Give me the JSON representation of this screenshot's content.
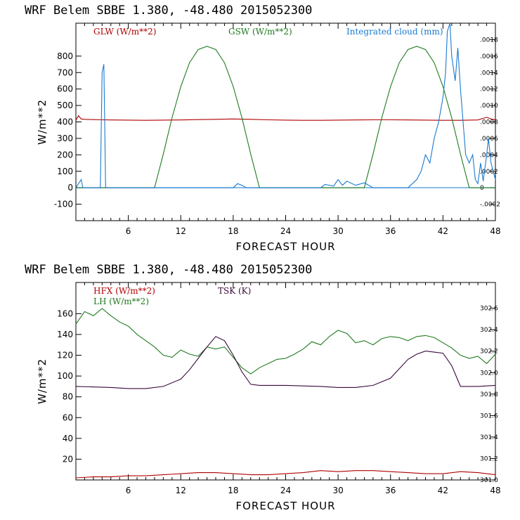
{
  "chart_data": [
    {
      "type": "line",
      "title": "WRF   Belem SBBE      1.380, -48.480  2015052300",
      "xlabel": "FORECAST HOUR",
      "ylabel": "W/m**2",
      "xlim": [
        0,
        48
      ],
      "ylim": [
        -200,
        1000
      ],
      "xticks": [
        "6",
        "12",
        "18",
        "24",
        "30",
        "36",
        "42",
        "48"
      ],
      "yticks": [
        "-100",
        "0",
        "100",
        "200",
        "300",
        "400",
        "500",
        "600",
        "700",
        "800"
      ],
      "y2lim": [
        -0.0004,
        0.002
      ],
      "y2ticks": [
        "-.0002",
        "0",
        ".0002",
        ".0004",
        ".0006",
        ".0008",
        ".0010",
        ".0012",
        ".0014",
        ".0016",
        ".0018"
      ],
      "series": [
        {
          "name": "GLW (W/m**2)",
          "color": "#b00000",
          "axis": "left",
          "x": [
            0,
            0.3,
            0.6,
            1,
            2,
            3,
            4,
            6,
            8,
            10,
            12,
            14,
            16,
            18,
            20,
            22,
            24,
            26,
            28,
            30,
            32,
            34,
            36,
            38,
            40,
            42,
            44,
            46,
            47,
            47.5,
            48
          ],
          "y": [
            410,
            438,
            418,
            416,
            414,
            413,
            412,
            411,
            410,
            411,
            412,
            414,
            416,
            418,
            416,
            413,
            411,
            410,
            410,
            411,
            412,
            413,
            413,
            412,
            411,
            410,
            410,
            412,
            428,
            418,
            412
          ]
        },
        {
          "name": "GSW (W/m**2)",
          "color": "#207a20",
          "axis": "left",
          "x": [
            0,
            9,
            10,
            11,
            12,
            13,
            14,
            15,
            16,
            17,
            18,
            19,
            20,
            21,
            33,
            34,
            35,
            36,
            37,
            38,
            39,
            40,
            41,
            42,
            43,
            44,
            45,
            48
          ],
          "y": [
            0,
            0,
            205,
            425,
            615,
            760,
            840,
            860,
            840,
            760,
            615,
            425,
            205,
            0,
            0,
            205,
            425,
            615,
            760,
            840,
            860,
            840,
            760,
            615,
            425,
            205,
            0,
            0
          ]
        },
        {
          "name": "Integrated cloud (mm)",
          "color": "#1a7ad0",
          "axis": "right",
          "x": [
            0,
            0.6,
            0.8,
            1.0,
            1.2,
            2.8,
            3.0,
            3.2,
            3.4,
            3.6,
            18,
            18.5,
            19,
            19.5,
            28,
            28.5,
            29.5,
            30,
            30.5,
            31,
            32,
            33,
            34,
            38,
            39,
            39.5,
            40,
            40.5,
            41,
            41.5,
            42,
            42.3,
            42.5,
            42.8,
            43,
            43.4,
            43.7,
            44,
            44.3,
            44.6,
            45,
            45.4,
            45.7,
            46,
            46.3,
            46.6,
            47,
            47.2,
            47.5,
            48
          ],
          "y": [
            0,
            0.0001,
            0,
            0,
            0,
            0,
            0.0014,
            0.0015,
            0,
            0,
            0,
            5e-05,
            3e-05,
            0,
            0,
            4e-05,
            2e-05,
            0.0001,
            3e-05,
            8e-05,
            3e-05,
            6e-05,
            0,
            0,
            0.0001,
            0.0002,
            0.0004,
            0.0003,
            0.0006,
            0.0008,
            0.0011,
            0.0014,
            0.0019,
            0.002,
            0.0016,
            0.0013,
            0.0017,
            0.0012,
            0.0008,
            0.0004,
            0.0003,
            0.0004,
            0.0001,
            5e-05,
            0.0003,
            8e-05,
            0.0004,
            0.0006,
            0.0003,
            0.0001
          ]
        }
      ]
    },
    {
      "type": "line",
      "title": "WRF   Belem SBBE      1.380, -48.480  2015052300",
      "xlabel": "FORECAST HOUR",
      "ylabel": "W/m**2",
      "xlim": [
        0,
        48
      ],
      "ylim": [
        0,
        190
      ],
      "xticks": [
        "6",
        "12",
        "18",
        "24",
        "30",
        "36",
        "42",
        "48"
      ],
      "yticks": [
        "20",
        "40",
        "60",
        "80",
        "100",
        "120",
        "140",
        "160"
      ],
      "y2lim": [
        301.0,
        302.84
      ],
      "y2ticks": [
        "301.0",
        "301.2",
        "301.4",
        "301.6",
        "301.8",
        "302.0",
        "302.2",
        "302.4",
        "302.6"
      ],
      "series": [
        {
          "name": "HFX (W/m**2)",
          "color": "#b00000",
          "axis": "left",
          "x": [
            0,
            2,
            4,
            6,
            8,
            10,
            12,
            14,
            16,
            18,
            20,
            22,
            24,
            26,
            28,
            30,
            32,
            34,
            36,
            38,
            40,
            42,
            44,
            46,
            48
          ],
          "y": [
            2,
            3,
            3,
            4,
            4,
            5,
            6,
            7,
            7,
            6,
            5,
            5,
            6,
            7,
            9,
            8,
            9,
            9,
            8,
            7,
            6,
            6,
            8,
            7,
            5
          ]
        },
        {
          "name": "LH  (W/m**2)",
          "color": "#207a20",
          "axis": "left",
          "x": [
            0,
            1,
            2,
            3,
            4,
            5,
            6,
            7,
            8,
            9,
            10,
            11,
            12,
            13,
            14,
            15,
            16,
            17,
            18,
            19,
            20,
            21,
            22,
            23,
            24,
            25,
            26,
            27,
            28,
            29,
            30,
            31,
            32,
            33,
            34,
            35,
            36,
            37,
            38,
            39,
            40,
            41,
            42,
            43,
            44,
            45,
            46,
            47,
            48
          ],
          "y": [
            150,
            162,
            158,
            165,
            158,
            152,
            148,
            140,
            134,
            128,
            120,
            118,
            125,
            121,
            119,
            128,
            126,
            128,
            118,
            108,
            102,
            108,
            112,
            116,
            117,
            121,
            126,
            133,
            130,
            138,
            144,
            141,
            132,
            134,
            130,
            136,
            138,
            137,
            134,
            138,
            139,
            137,
            132,
            127,
            120,
            117,
            119,
            112,
            121
          ]
        },
        {
          "name": "TSK (K)",
          "color": "#3a0a3a",
          "axis": "left",
          "x": [
            0,
            4,
            6,
            8,
            10,
            12,
            13,
            14,
            15,
            16,
            17,
            18,
            19,
            20,
            21,
            24,
            28,
            30,
            32,
            34,
            36,
            37,
            38,
            39,
            40,
            41,
            42,
            43,
            44,
            46,
            48
          ],
          "y": [
            90,
            89,
            88,
            88,
            90,
            97,
            106,
            117,
            128,
            138,
            134,
            120,
            104,
            92,
            91,
            91,
            90,
            89,
            89,
            91,
            98,
            107,
            116,
            121,
            124,
            123,
            122,
            110,
            90,
            90,
            91
          ]
        }
      ]
    }
  ]
}
